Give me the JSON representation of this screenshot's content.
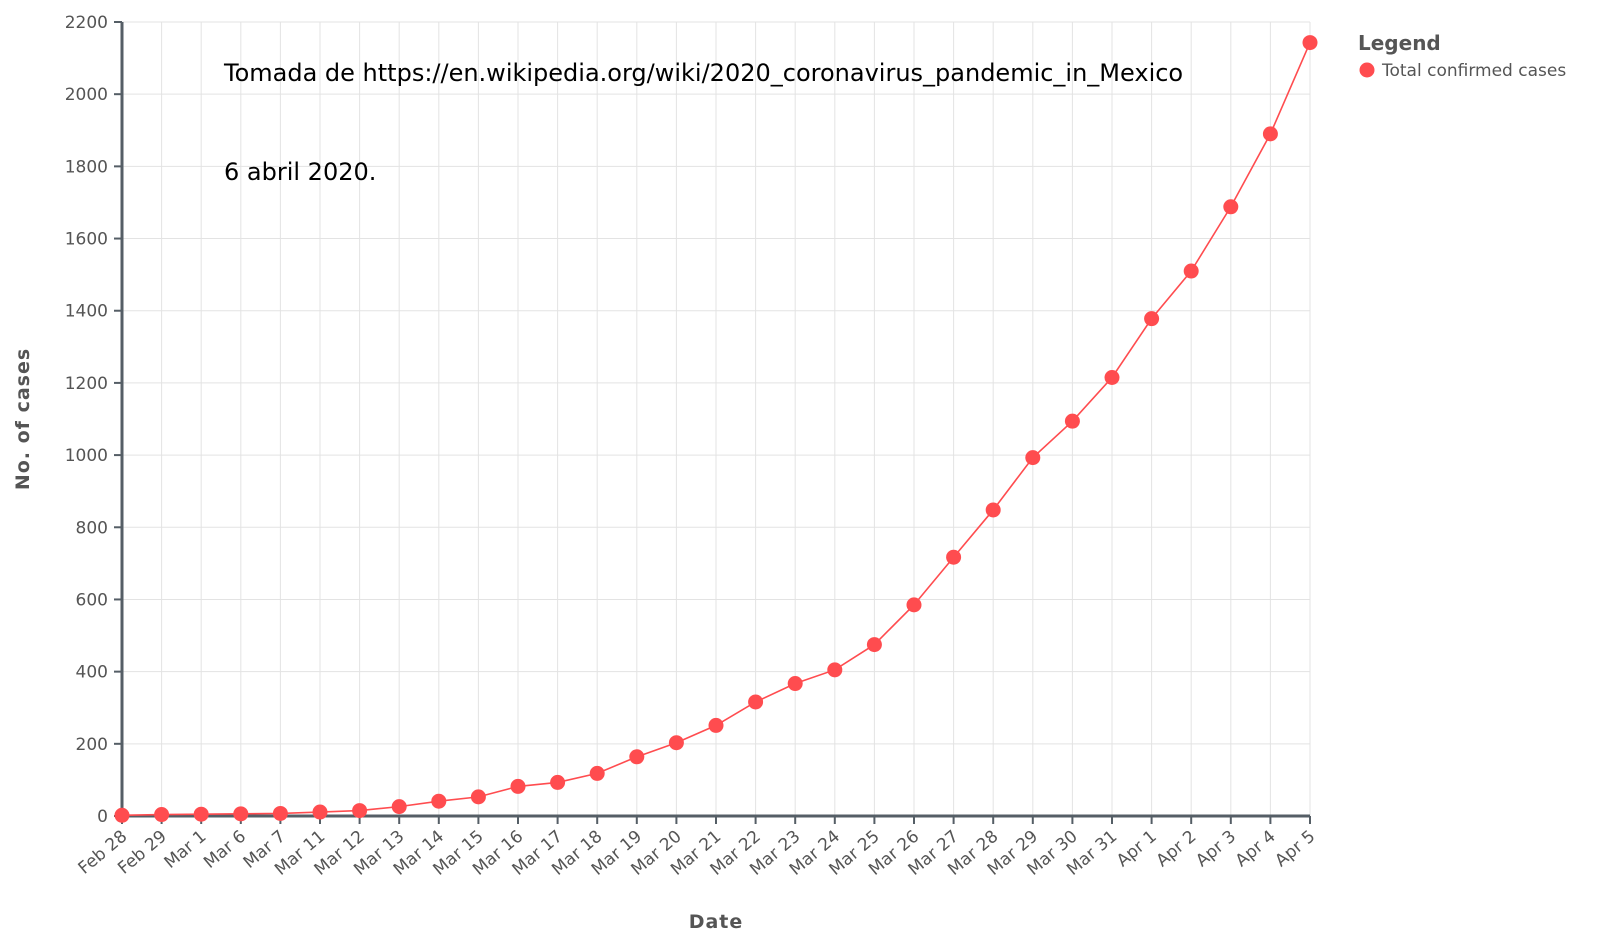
{
  "chart_data": {
    "type": "line",
    "title": "",
    "xlabel": "Date",
    "ylabel": "No. of cases",
    "ylim": [
      0,
      2200
    ],
    "yticks": [
      0,
      200,
      400,
      600,
      800,
      1000,
      1200,
      1400,
      1600,
      1800,
      2000,
      2200
    ],
    "grid": true,
    "legend": {
      "title": "Legend",
      "placement": "top-right"
    },
    "categories": [
      "Feb 28",
      "Feb 29",
      "Mar 1",
      "Mar 6",
      "Mar 7",
      "Mar 11",
      "Mar 12",
      "Mar 13",
      "Mar 14",
      "Mar 15",
      "Mar 16",
      "Mar 17",
      "Mar 18",
      "Mar 19",
      "Mar 20",
      "Mar 21",
      "Mar 22",
      "Mar 23",
      "Mar 24",
      "Mar 25",
      "Mar 26",
      "Mar 27",
      "Mar 28",
      "Mar 29",
      "Mar 30",
      "Mar 31",
      "Apr 1",
      "Apr 2",
      "Apr 3",
      "Apr 4",
      "Apr 5"
    ],
    "series": [
      {
        "name": "Total confirmed cases",
        "color": "#ff4c4f",
        "values": [
          2,
          4,
          5,
          6,
          7,
          11,
          15,
          26,
          41,
          53,
          82,
          93,
          118,
          164,
          203,
          251,
          316,
          367,
          405,
          475,
          585,
          717,
          848,
          993,
          1094,
          1215,
          1378,
          1510,
          1688,
          1890,
          2143
        ]
      }
    ],
    "annotations": [
      "Tomada de https://en.wikipedia.org/wiki/2020_coronavirus_pandemic_in_Mexico",
      "6 abril 2020."
    ]
  }
}
